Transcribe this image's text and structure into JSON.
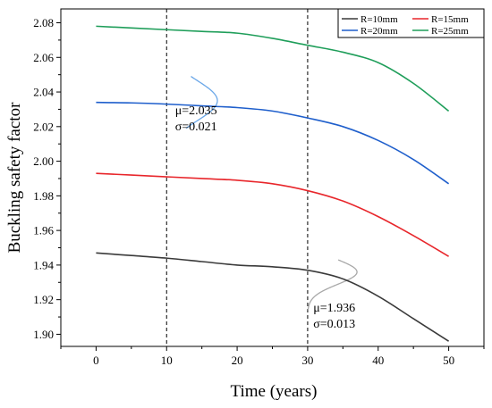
{
  "chart_data": {
    "type": "line",
    "title": "",
    "xlabel": "Time (years)",
    "ylabel": "Buckling safety factor",
    "xlim": [
      -5,
      55
    ],
    "ylim": [
      1.893,
      2.088
    ],
    "xticks": [
      0,
      10,
      20,
      30,
      40,
      50
    ],
    "xtick_labels": [
      "0",
      "10",
      "20",
      "30",
      "40",
      "50"
    ],
    "yticks": [
      1.9,
      1.92,
      1.94,
      1.96,
      1.98,
      2.0,
      2.02,
      2.04,
      2.06,
      2.08
    ],
    "ytick_labels": [
      "1.90",
      "1.92",
      "1.94",
      "1.96",
      "1.98",
      "2.00",
      "2.02",
      "2.04",
      "2.06",
      "2.08"
    ],
    "grid": false,
    "legend_position": "top-right",
    "series": [
      {
        "name": "R=10mm",
        "color": "#3a3a3a",
        "x": [
          0,
          5,
          10,
          15,
          20,
          25,
          30,
          35,
          40,
          45,
          50
        ],
        "y": [
          1.947,
          1.9455,
          1.944,
          1.942,
          1.94,
          1.939,
          1.937,
          1.932,
          1.922,
          1.909,
          1.896
        ]
      },
      {
        "name": "R=15mm",
        "color": "#e8262b",
        "x": [
          0,
          5,
          10,
          15,
          20,
          25,
          30,
          35,
          40,
          45,
          50
        ],
        "y": [
          1.993,
          1.992,
          1.991,
          1.99,
          1.989,
          1.987,
          1.983,
          1.977,
          1.968,
          1.957,
          1.945
        ]
      },
      {
        "name": "R=20mm",
        "color": "#1f5fcc",
        "x": [
          0,
          5,
          10,
          15,
          20,
          25,
          30,
          35,
          40,
          45,
          50
        ],
        "y": [
          2.034,
          2.0337,
          2.033,
          2.032,
          2.031,
          2.029,
          2.025,
          2.02,
          2.012,
          2.001,
          1.987
        ]
      },
      {
        "name": "R=25mm",
        "color": "#1f9e5a",
        "x": [
          0,
          5,
          10,
          15,
          20,
          25,
          30,
          35,
          40,
          45,
          50
        ],
        "y": [
          2.078,
          2.077,
          2.076,
          2.075,
          2.074,
          2.071,
          2.067,
          2.063,
          2.057,
          2.045,
          2.029
        ]
      }
    ],
    "reference_lines": [
      {
        "x": 10,
        "style": "dashed"
      },
      {
        "x": 30,
        "style": "dashed"
      }
    ],
    "distributions": [
      {
        "at_x": 10,
        "mu": 2.035,
        "sigma": 0.021,
        "peak_x": 17.2,
        "range": [
          2.019,
          2.049
        ],
        "color": "#6aa7e8"
      },
      {
        "at_x": 30,
        "mu": 1.936,
        "sigma": 0.013,
        "peak_x": 37.0,
        "range": [
          1.914,
          1.943
        ],
        "color": "#a8a8a8"
      }
    ],
    "annotations": [
      {
        "label_lines": [
          "μ=2.035",
          "σ=0.021"
        ],
        "at": [
          11.2,
          2.027
        ]
      },
      {
        "label_lines": [
          "μ=1.936",
          "σ=0.013"
        ],
        "at": [
          30.8,
          1.913
        ]
      }
    ]
  }
}
